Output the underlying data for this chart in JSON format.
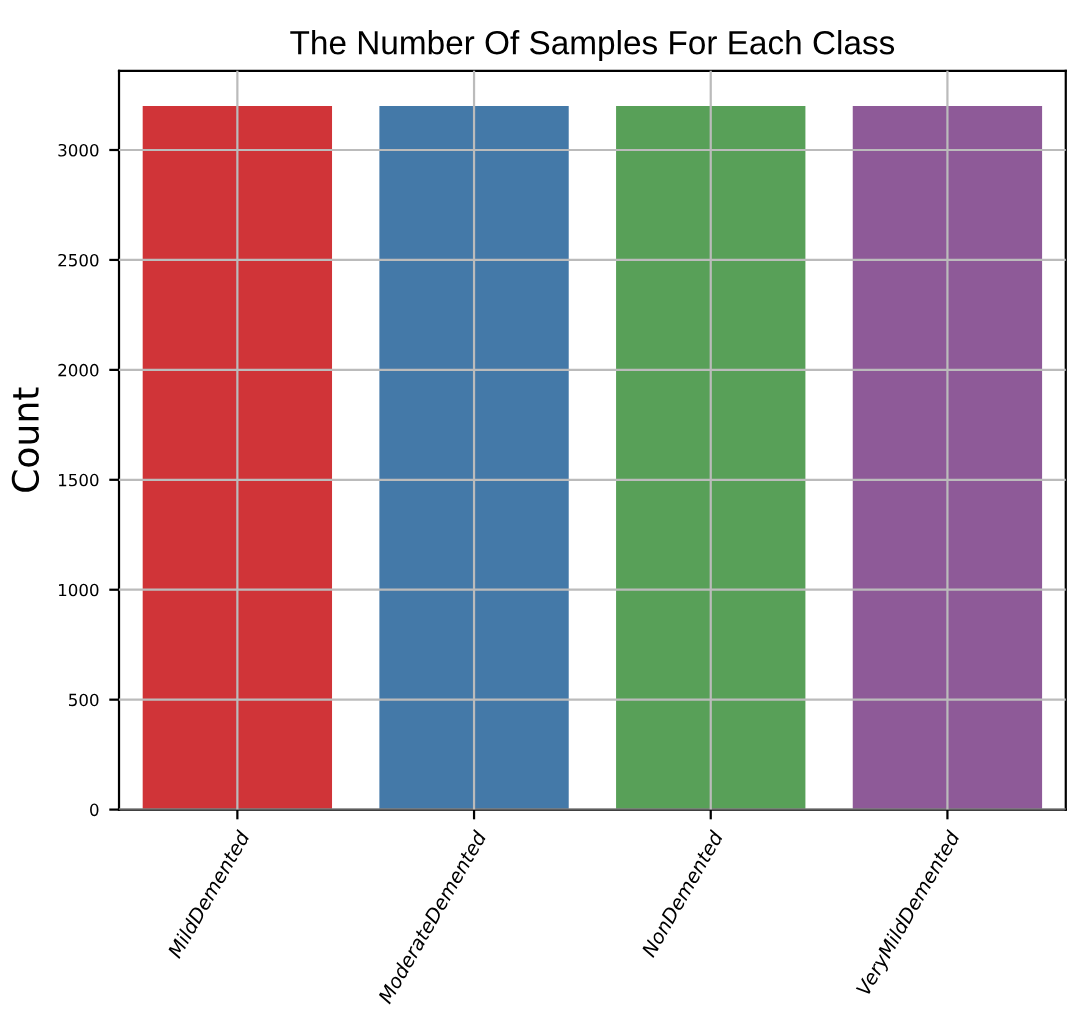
{
  "chart_data": {
    "type": "bar",
    "title": "The Number Of Samples For Each Class",
    "ylabel": "Count",
    "categories": [
      "MildDemented",
      "ModerateDemented",
      "NonDemented",
      "VeryMildDemented"
    ],
    "values": [
      3200,
      3200,
      3200,
      3200
    ],
    "colors": [
      "#d03438",
      "#4479a8",
      "#58a058",
      "#8e5a98"
    ],
    "ylim": [
      0,
      3360
    ],
    "yticks": [
      0,
      500,
      1000,
      1500,
      2000,
      2500,
      3000
    ],
    "grid": true
  }
}
